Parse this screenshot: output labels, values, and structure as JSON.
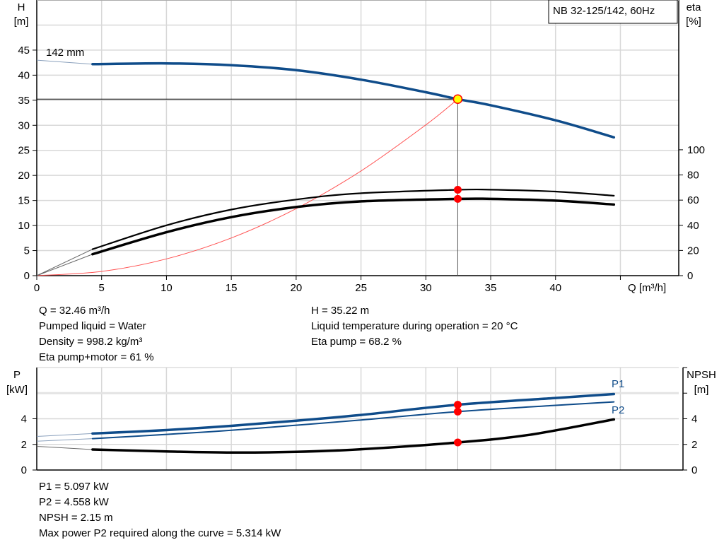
{
  "chart_data": [
    {
      "type": "line",
      "title": "NB 32-125/142, 60Hz",
      "xlabel": "Q [m³/h]",
      "ylabel": "H\n[m]",
      "y2label": "eta\n[%]",
      "xlim": [
        0,
        49.5
      ],
      "ylim": [
        0,
        55
      ],
      "y2lim": [
        0,
        219
      ],
      "xticks": [
        0,
        5,
        10,
        15,
        20,
        25,
        30,
        35,
        40
      ],
      "yticks": [
        0,
        5,
        10,
        15,
        20,
        25,
        30,
        35,
        40,
        45
      ],
      "y2ticks": [
        0,
        20,
        40,
        60,
        80,
        100
      ],
      "grid": true,
      "annotation": "142 mm",
      "colors": {
        "head": "#0f4c8a",
        "eta": "#000000",
        "system": "#ff5050",
        "point": "#ff0000",
        "duty_fill": "#ffff00"
      },
      "series": [
        {
          "key": "head",
          "axis": "H",
          "thin": [
            [
              0,
              43
            ],
            [
              4.3,
              42.2
            ]
          ],
          "values": [
            [
              4.3,
              42.2
            ],
            [
              10,
              42.35
            ],
            [
              15,
              42
            ],
            [
              20,
              41
            ],
            [
              25,
              39.1
            ],
            [
              30,
              36.6
            ],
            [
              32.46,
              35.22
            ],
            [
              35,
              34
            ],
            [
              40,
              31
            ],
            [
              44.5,
              27.6
            ]
          ]
        },
        {
          "key": "eta_pump",
          "axis": "eta",
          "thin": [
            [
              0,
              0
            ],
            [
              4.3,
              21
            ]
          ],
          "values": [
            [
              4.3,
              21
            ],
            [
              10,
              40
            ],
            [
              15,
              52.5
            ],
            [
              20,
              60.5
            ],
            [
              25,
              65.5
            ],
            [
              32.46,
              68.2
            ],
            [
              35,
              68.3
            ],
            [
              40,
              66.8
            ],
            [
              44.5,
              63.5
            ]
          ]
        },
        {
          "key": "eta_pump_motor",
          "axis": "eta",
          "thin": [
            [
              0,
              0
            ],
            [
              4.3,
              17
            ]
          ],
          "values": [
            [
              4.3,
              17
            ],
            [
              10,
              34.5
            ],
            [
              15,
              46.5
            ],
            [
              20,
              54.5
            ],
            [
              25,
              59
            ],
            [
              32.46,
              61
            ],
            [
              35,
              61
            ],
            [
              40,
              59.6
            ],
            [
              44.5,
              56.5
            ]
          ]
        },
        {
          "key": "system",
          "axis": "H",
          "thin": [],
          "values": [
            [
              0,
              0
            ],
            [
              5,
              0.84
            ],
            [
              10,
              3.34
            ],
            [
              15,
              7.52
            ],
            [
              20,
              13.37
            ],
            [
              25,
              20.89
            ],
            [
              30,
              30.08
            ],
            [
              32.46,
              35.22
            ]
          ]
        }
      ],
      "duty_point": {
        "Q": 32.46,
        "H": 35.22,
        "eta_pump": 68.2,
        "eta_pump_motor": 61
      }
    },
    {
      "type": "line",
      "xlim": [
        0,
        49.5
      ],
      "ylabel": "P\n[kW]",
      "y2label": "NPSH\n[m]",
      "ylim": [
        0,
        8
      ],
      "yticks": [
        0,
        2,
        4
      ],
      "y2ticks": [
        0,
        2,
        4
      ],
      "grid": true,
      "colors": {
        "P1": "#0f4c8a",
        "P2": "#0f4c8a",
        "NPSH": "#000000"
      },
      "series": [
        {
          "name": "P1",
          "key": "P1",
          "thin": [
            [
              0,
              2.62
            ],
            [
              4.3,
              2.85
            ]
          ],
          "values": [
            [
              4.3,
              2.85
            ],
            [
              10,
              3.12
            ],
            [
              15,
              3.45
            ],
            [
              20,
              3.85
            ],
            [
              25,
              4.3
            ],
            [
              32.46,
              5.1
            ],
            [
              40,
              5.62
            ],
            [
              44.5,
              5.93
            ]
          ]
        },
        {
          "name": "P2",
          "key": "P2",
          "thin": [
            [
              0,
              2.25
            ],
            [
              4.3,
              2.45
            ]
          ],
          "values": [
            [
              4.3,
              2.45
            ],
            [
              10,
              2.78
            ],
            [
              15,
              3.1
            ],
            [
              20,
              3.5
            ],
            [
              25,
              3.9
            ],
            [
              32.46,
              4.56
            ],
            [
              40,
              5.05
            ],
            [
              44.5,
              5.32
            ]
          ]
        },
        {
          "key": "NPSH",
          "thin": [
            [
              0,
              1.85
            ],
            [
              4.3,
              1.6
            ]
          ],
          "values": [
            [
              4.3,
              1.6
            ],
            [
              10,
              1.45
            ],
            [
              15,
              1.37
            ],
            [
              20,
              1.42
            ],
            [
              25,
              1.62
            ],
            [
              32.46,
              2.15
            ],
            [
              38,
              2.75
            ],
            [
              44.5,
              3.95
            ]
          ]
        }
      ],
      "duty_point": {
        "Q": 32.46,
        "P1": 5.097,
        "P2": 4.558,
        "NPSH": 2.15
      }
    }
  ],
  "info_top": {
    "left": [
      "Q = 32.46 m³/h",
      "Pumped liquid = Water",
      "Density = 998.2 kg/m³",
      "Eta pump+motor = 61 %"
    ],
    "right": [
      "H = 35.22 m",
      "Liquid temperature during operation = 20 °C",
      "Eta pump = 68.2 %"
    ]
  },
  "info_bottom": [
    "P1 = 5.097 kW",
    "P2 = 4.558 kW",
    "NPSH = 2.15 m",
    "Max power P2 required along the curve = 5.314 kW"
  ]
}
